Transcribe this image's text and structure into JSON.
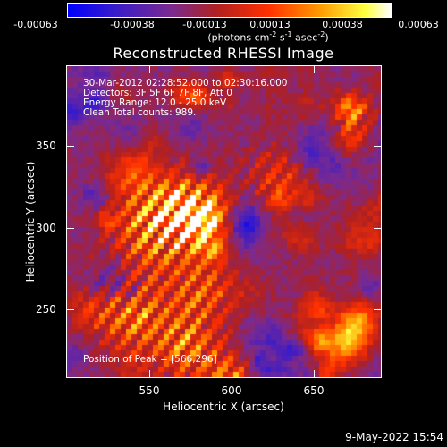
{
  "colorbar": {
    "ticks": [
      "-0.00063",
      "-0.00038",
      "-0.00013",
      "0.00013",
      "0.00038",
      "0.00063"
    ],
    "units_main": "(photons cm",
    "units_sup1": "-2",
    "units_mid1": " s",
    "units_sup2": "-1",
    "units_mid2": " asec",
    "units_sup3": "-2",
    "units_end": ")",
    "colormap": [
      "#0000ff",
      "#3a1cc8",
      "#8a2a8a",
      "#c02020",
      "#ff4000",
      "#ffa000",
      "#ffff60",
      "#ffffff"
    ]
  },
  "title": "Reconstructed RHESSI Image",
  "annotations": {
    "time_range": "30-Mar-2012 02:28:52.000 to 02:30:16.000",
    "detectors": "Detectors: 3F 5F 6F 7F 8F, Att 0",
    "energy": "Energy Range: 12.0 - 25.0 keV",
    "clean": "Clean    Total counts: 989.",
    "peak": "Position of Peak = [566,296]"
  },
  "axes": {
    "xlabel": "Heliocentric X (arcsec)",
    "ylabel": "Heliocentric Y (arcsec)",
    "xticks": [
      "550",
      "600",
      "650"
    ],
    "yticks": [
      "350",
      "300",
      "250"
    ]
  },
  "chart_data": {
    "type": "heatmap",
    "title": "Reconstructed RHESSI Image",
    "xlabel": "Heliocentric X (arcsec)",
    "ylabel": "Heliocentric Y (arcsec)",
    "xlim": [
      504,
      694
    ],
    "ylim": [
      204,
      394
    ],
    "zlim": [
      -0.00063,
      0.00063
    ],
    "peak": [
      566,
      296
    ]
  },
  "timestamp": "9-May-2022 15:54"
}
